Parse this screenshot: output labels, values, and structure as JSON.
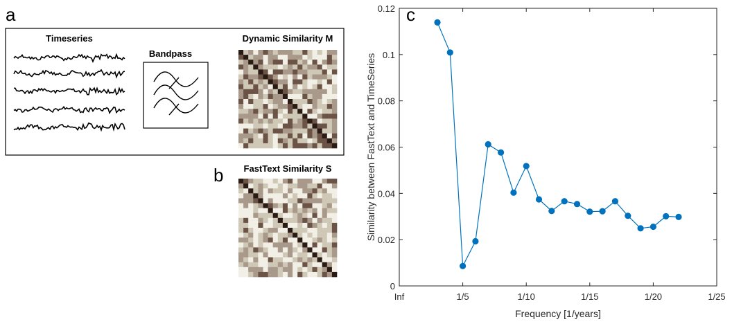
{
  "panels": {
    "a": {
      "letter": "a",
      "timeseries_label": "Timeseries",
      "bandpass_label": "Bandpass",
      "matrix_label": "Dynamic Similarity M"
    },
    "b": {
      "letter": "b",
      "matrix_label": "FastText Similarity S"
    },
    "c": {
      "letter": "c"
    }
  },
  "colors": {
    "series": "#0072BD",
    "axis": "#262626",
    "matrix_dark": "#2a1a14",
    "matrix_brown": "#6b5346",
    "matrix_light": "#f2f0e6"
  },
  "chart_data": {
    "type": "line",
    "xlabel": "Frequency [1/years]",
    "ylabel": "Similarity between FastText and TimeSeries",
    "x_tick_labels": [
      "Inf",
      "1/5",
      "1/10",
      "1/15",
      "1/20",
      "1/25"
    ],
    "x_tick_positions": [
      0,
      5,
      10,
      15,
      20,
      25
    ],
    "y_tick_labels": [
      "0",
      "0.02",
      "0.04",
      "0.06",
      "0.08",
      "0.1",
      "0.12"
    ],
    "y_tick_values": [
      0,
      0.02,
      0.04,
      0.06,
      0.08,
      0.1,
      0.12
    ],
    "xlim": [
      0,
      25
    ],
    "ylim": [
      0,
      0.12
    ],
    "grid": false,
    "series": [
      {
        "x": [
          3,
          4,
          5,
          6,
          7,
          8,
          9,
          10,
          11,
          12,
          13,
          14,
          15,
          16,
          17,
          18,
          19,
          20,
          21,
          22
        ],
        "values": [
          0.1139,
          0.1009,
          0.0086,
          0.0193,
          0.0612,
          0.0577,
          0.0403,
          0.0518,
          0.0374,
          0.0324,
          0.0366,
          0.0354,
          0.0321,
          0.0323,
          0.0366,
          0.0303,
          0.0249,
          0.0256,
          0.0301,
          0.0298
        ]
      }
    ]
  }
}
